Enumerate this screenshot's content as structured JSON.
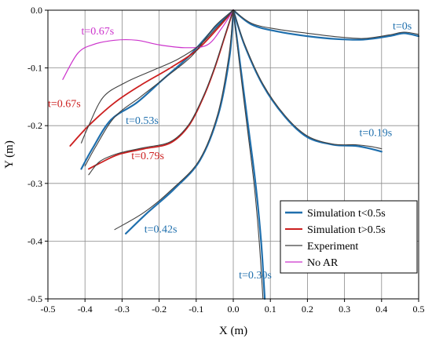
{
  "chart_data": {
    "type": "line",
    "xlabel": "X (m)",
    "ylabel": "Y (m)",
    "xlim": [
      -0.5,
      0.5
    ],
    "ylim": [
      -0.5,
      0.0
    ],
    "xticks": [
      "-0.5",
      "-0.4",
      "-0.3",
      "-0.2",
      "-0.1",
      "0.0",
      "0.1",
      "0.2",
      "0.3",
      "0.4",
      "0.5"
    ],
    "yticks": [
      "0.0",
      "-0.1",
      "-0.2",
      "-0.3",
      "-0.4",
      "-0.5"
    ],
    "grid": true,
    "legend_position": "bottom-right",
    "legend": [
      {
        "label": "Simulation t<0.5s",
        "color": "#1f6fad"
      },
      {
        "label": "Simulation t>0.5s",
        "color": "#cc1f1f"
      },
      {
        "label": "Experiment",
        "color": "#404040"
      },
      {
        "label": "No AR",
        "color": "#cc33cc"
      }
    ],
    "colors": {
      "blue": "#1f6fad",
      "red": "#cc1f1f",
      "gray": "#404040",
      "magenta": "#cc33cc"
    },
    "series": [
      {
        "label": "t=0s",
        "label_color": "#1f6fad",
        "label_at": [
          0.43,
          -0.033
        ],
        "curves": [
          {
            "color": "blue",
            "points": [
              [
                0,
                0
              ],
              [
                0.05,
                -0.025
              ],
              [
                0.12,
                -0.037
              ],
              [
                0.2,
                -0.045
              ],
              [
                0.28,
                -0.05
              ],
              [
                0.35,
                -0.051
              ],
              [
                0.42,
                -0.045
              ],
              [
                0.46,
                -0.04
              ],
              [
                0.5,
                -0.045
              ]
            ]
          },
          {
            "color": "gray",
            "points": [
              [
                0,
                0
              ],
              [
                0.05,
                -0.023
              ],
              [
                0.12,
                -0.033
              ],
              [
                0.2,
                -0.04
              ],
              [
                0.28,
                -0.046
              ],
              [
                0.35,
                -0.049
              ],
              [
                0.42,
                -0.043
              ],
              [
                0.46,
                -0.038
              ],
              [
                0.5,
                -0.042
              ]
            ]
          }
        ]
      },
      {
        "label": "t=0.19s",
        "label_color": "#1f6fad",
        "label_at": [
          0.34,
          -0.218
        ],
        "curves": [
          {
            "color": "blue",
            "points": [
              [
                0,
                0
              ],
              [
                0.03,
                -0.06
              ],
              [
                0.08,
                -0.13
              ],
              [
                0.14,
                -0.185
              ],
              [
                0.2,
                -0.22
              ],
              [
                0.27,
                -0.233
              ],
              [
                0.33,
                -0.235
              ],
              [
                0.37,
                -0.24
              ],
              [
                0.4,
                -0.245
              ]
            ]
          },
          {
            "color": "gray",
            "points": [
              [
                0,
                0
              ],
              [
                0.03,
                -0.058
              ],
              [
                0.08,
                -0.128
              ],
              [
                0.14,
                -0.183
              ],
              [
                0.2,
                -0.218
              ],
              [
                0.27,
                -0.232
              ],
              [
                0.33,
                -0.233
              ],
              [
                0.37,
                -0.236
              ],
              [
                0.4,
                -0.24
              ]
            ]
          }
        ]
      },
      {
        "label": "t=0.30s",
        "label_color": "#1f6fad",
        "label_at": [
          0.015,
          -0.465
        ],
        "curves": [
          {
            "color": "blue",
            "points": [
              [
                0,
                0
              ],
              [
                0.02,
                -0.1
              ],
              [
                0.04,
                -0.2
              ],
              [
                0.06,
                -0.3
              ],
              [
                0.075,
                -0.4
              ],
              [
                0.085,
                -0.5
              ]
            ]
          },
          {
            "color": "gray",
            "points": [
              [
                0,
                0
              ],
              [
                0.018,
                -0.1
              ],
              [
                0.037,
                -0.2
              ],
              [
                0.056,
                -0.3
              ],
              [
                0.07,
                -0.4
              ],
              [
                0.08,
                -0.5
              ]
            ]
          }
        ]
      },
      {
        "label": "t=0.42s",
        "label_color": "#1f6fad",
        "label_at": [
          -0.24,
          -0.385
        ],
        "curves": [
          {
            "color": "blue",
            "points": [
              [
                0,
                0
              ],
              [
                -0.01,
                -0.08
              ],
              [
                -0.04,
                -0.18
              ],
              [
                -0.09,
                -0.26
              ],
              [
                -0.16,
                -0.31
              ],
              [
                -0.23,
                -0.35
              ],
              [
                -0.29,
                -0.387
              ]
            ]
          },
          {
            "color": "gray",
            "points": [
              [
                0,
                0
              ],
              [
                -0.012,
                -0.08
              ],
              [
                -0.042,
                -0.18
              ],
              [
                -0.092,
                -0.26
              ],
              [
                -0.165,
                -0.31
              ],
              [
                -0.24,
                -0.35
              ],
              [
                -0.32,
                -0.38
              ]
            ]
          }
        ]
      },
      {
        "label": "t=0.53s",
        "label_color": "#1f6fad",
        "label_at": [
          -0.29,
          -0.197
        ],
        "curves": [
          {
            "color": "blue",
            "points": [
              [
                0,
                0
              ],
              [
                -0.05,
                -0.03
              ],
              [
                -0.12,
                -0.08
              ],
              [
                -0.19,
                -0.12
              ],
              [
                -0.26,
                -0.16
              ],
              [
                -0.33,
                -0.19
              ],
              [
                -0.38,
                -0.24
              ],
              [
                -0.41,
                -0.275
              ]
            ]
          },
          {
            "color": "gray",
            "points": [
              [
                0,
                0
              ],
              [
                -0.05,
                -0.028
              ],
              [
                -0.11,
                -0.078
              ],
              [
                -0.18,
                -0.115
              ],
              [
                -0.25,
                -0.15
              ],
              [
                -0.32,
                -0.185
              ],
              [
                -0.37,
                -0.235
              ],
              [
                -0.4,
                -0.27
              ]
            ]
          }
        ]
      },
      {
        "label": "t=0.67s",
        "label_color": "#cc1f1f",
        "label_at": [
          -0.5,
          -0.168
        ],
        "curves": [
          {
            "color": "red",
            "points": [
              [
                0,
                0
              ],
              [
                -0.04,
                -0.03
              ],
              [
                -0.1,
                -0.07
              ],
              [
                -0.17,
                -0.1
              ],
              [
                -0.25,
                -0.13
              ],
              [
                -0.32,
                -0.16
              ],
              [
                -0.39,
                -0.2
              ],
              [
                -0.44,
                -0.235
              ]
            ]
          },
          {
            "color": "gray",
            "points": [
              [
                0,
                0
              ],
              [
                -0.04,
                -0.027
              ],
              [
                -0.09,
                -0.06
              ],
              [
                -0.15,
                -0.085
              ],
              [
                -0.22,
                -0.105
              ],
              [
                -0.29,
                -0.125
              ],
              [
                -0.35,
                -0.15
              ],
              [
                -0.39,
                -0.2
              ],
              [
                -0.41,
                -0.23
              ]
            ]
          }
        ]
      },
      {
        "label": "t=0.79s",
        "label_color": "#cc1f1f",
        "label_at": [
          -0.275,
          -0.258
        ],
        "curves": [
          {
            "color": "red",
            "points": [
              [
                0,
                0
              ],
              [
                -0.02,
                -0.04
              ],
              [
                -0.05,
                -0.1
              ],
              [
                -0.08,
                -0.15
              ],
              [
                -0.12,
                -0.2
              ],
              [
                -0.17,
                -0.23
              ],
              [
                -0.24,
                -0.24
              ],
              [
                -0.31,
                -0.25
              ],
              [
                -0.36,
                -0.265
              ],
              [
                -0.39,
                -0.275
              ]
            ]
          },
          {
            "color": "gray",
            "points": [
              [
                0,
                0
              ],
              [
                -0.02,
                -0.038
              ],
              [
                -0.05,
                -0.098
              ],
              [
                -0.08,
                -0.148
              ],
              [
                -0.12,
                -0.198
              ],
              [
                -0.17,
                -0.228
              ],
              [
                -0.24,
                -0.238
              ],
              [
                -0.31,
                -0.248
              ],
              [
                -0.36,
                -0.262
              ],
              [
                -0.39,
                -0.285
              ]
            ]
          }
        ]
      },
      {
        "label": "t=0.67s",
        "label_color": "#cc33cc",
        "label_at": [
          -0.41,
          -0.042
        ],
        "curves": [
          {
            "color": "magenta",
            "points": [
              [
                0,
                0
              ],
              [
                -0.03,
                -0.03
              ],
              [
                -0.07,
                -0.06
              ],
              [
                -0.13,
                -0.065
              ],
              [
                -0.2,
                -0.06
              ],
              [
                -0.26,
                -0.052
              ],
              [
                -0.32,
                -0.052
              ],
              [
                -0.38,
                -0.06
              ],
              [
                -0.42,
                -0.075
              ],
              [
                -0.46,
                -0.12
              ]
            ]
          }
        ]
      }
    ]
  }
}
